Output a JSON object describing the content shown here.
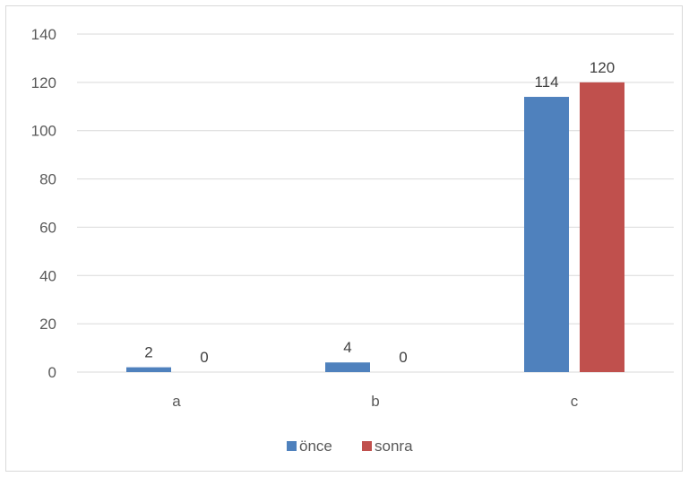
{
  "chart_data": {
    "type": "bar",
    "categories": [
      "a",
      "b",
      "c"
    ],
    "series": [
      {
        "name": "önce",
        "values": [
          2,
          4,
          114
        ],
        "color": "#4f81bd"
      },
      {
        "name": "sonra",
        "values": [
          0,
          0,
          120
        ],
        "color": "#c0504d"
      }
    ],
    "ylim": [
      0,
      140
    ],
    "yticks": [
      0,
      20,
      40,
      60,
      80,
      100,
      120,
      140
    ],
    "grid": true,
    "legend": "bottom",
    "data_labels": true,
    "gridline_color": "#d9d9d9",
    "axis_color": "#d9d9d9"
  }
}
